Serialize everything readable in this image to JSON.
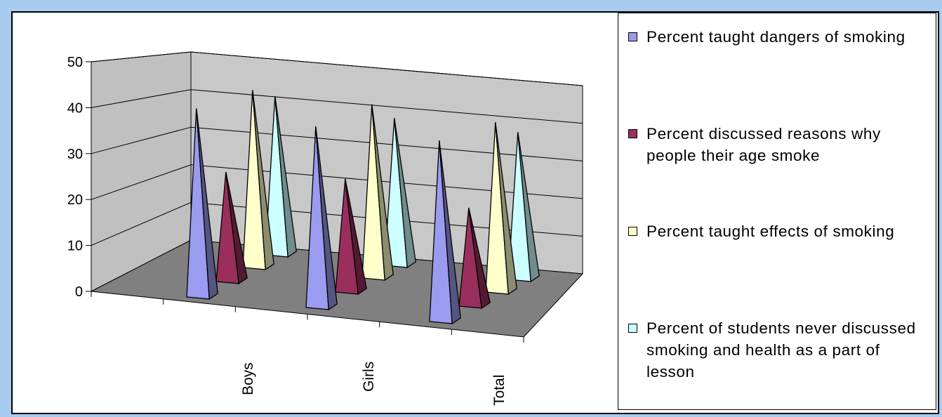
{
  "chart_data": {
    "type": "bar",
    "style": "3d-pyramid",
    "categories": [
      "Boys",
      "Girls",
      "Total"
    ],
    "series": [
      {
        "name": "Percent taught dangers of smoking",
        "values": [
          49,
          47,
          47
        ],
        "color": "#9b9bef"
      },
      {
        "name": "Percent discussed reasons why people their age smoke",
        "values": [
          28,
          29,
          25
        ],
        "color": "#9a2f5d"
      },
      {
        "name": "Percent taught effects of smoking",
        "values": [
          46,
          45,
          44
        ],
        "color": "#ffffcc"
      },
      {
        "name": "Percent of students never discussed smoking and health as a part of lesson",
        "values": [
          41,
          38,
          38
        ],
        "color": "#ccffff"
      }
    ],
    "yticks": [
      "0",
      "10",
      "20",
      "30",
      "40",
      "50"
    ],
    "ylim": [
      0,
      50
    ],
    "grid": true,
    "legend": "right"
  }
}
